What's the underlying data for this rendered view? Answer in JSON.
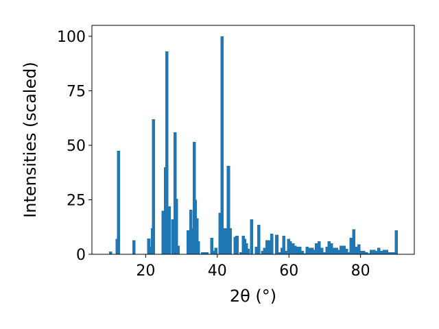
{
  "chart_data": {
    "type": "bar",
    "xlabel": "2θ (°)",
    "ylabel": "Intensities (scaled)",
    "xlim": [
      5,
      95
    ],
    "ylim": [
      0,
      105
    ],
    "xticks": [
      20,
      40,
      60,
      80
    ],
    "yticks": [
      0,
      25,
      50,
      75,
      100
    ],
    "bar_color": "#1f77b4",
    "grid": false,
    "series": [
      {
        "x": [
          10.2,
          12.0,
          12.4,
          16.7,
          20.9,
          21.5,
          21.9,
          22.2,
          24.9,
          25.5,
          25.9,
          26.6,
          27.6,
          28.2,
          28.6,
          29.1,
          31.9,
          32.6,
          33.0,
          33.6,
          33.9,
          34.3,
          34.7,
          35.9,
          36.4,
          37.1,
          38.5,
          39.1,
          39.6,
          40.8,
          41.3,
          42.2,
          43.1,
          43.6,
          45.0,
          45.5,
          46.6,
          47.3,
          47.6,
          48.1,
          48.6,
          49.6,
          50.9,
          51.6,
          52.6,
          53.2,
          53.9,
          54.7,
          55.2,
          56.6,
          57.2,
          58.1,
          58.6,
          59.4,
          59.9,
          60.4,
          61.1,
          61.7,
          62.5,
          63.1,
          63.7,
          64.4,
          65.1,
          65.8,
          66.5,
          67.1,
          67.7,
          68.4,
          69.2,
          69.9,
          70.6,
          71.2,
          71.9,
          72.6,
          73.3,
          74.1,
          74.6,
          75.4,
          76.1,
          76.8,
          77.3,
          78.1,
          78.7,
          79.5,
          80.2,
          80.9,
          81.6,
          82.3,
          83.0,
          83.7,
          84.4,
          85.1,
          85.8,
          86.6,
          87.3,
          88.0,
          88.7,
          89.4,
          90.0
        ],
        "values": [
          1.2,
          7.0,
          47.5,
          6.5,
          7.3,
          3.5,
          12.0,
          62.0,
          20.0,
          40.0,
          93.0,
          22.0,
          16.0,
          56.0,
          25.5,
          4.0,
          11.0,
          20.5,
          12.0,
          51.5,
          25.0,
          16.5,
          6.0,
          1.0,
          1.0,
          1.0,
          7.5,
          1.5,
          3.0,
          19.0,
          100.0,
          12.0,
          40.5,
          12.0,
          8.0,
          8.5,
          1.0,
          8.5,
          7.0,
          5.0,
          2.5,
          16.0,
          3.5,
          13.5,
          1.5,
          3.0,
          6.5,
          6.5,
          9.5,
          9.0,
          1.0,
          3.0,
          8.5,
          1.5,
          7.0,
          6.0,
          5.0,
          4.0,
          3.5,
          3.5,
          1.5,
          0.5,
          3.5,
          3.0,
          3.0,
          2.0,
          5.0,
          6.0,
          3.0,
          1.0,
          3.5,
          6.0,
          5.0,
          3.0,
          3.0,
          2.0,
          4.0,
          4.0,
          2.5,
          1.0,
          7.5,
          11.5,
          3.5,
          4.5,
          1.5,
          1.5,
          1.0,
          0.5,
          2.0,
          2.0,
          1.5,
          3.0,
          1.5,
          2.0,
          2.0,
          1.0,
          1.0,
          1.0,
          11.0
        ]
      }
    ]
  }
}
